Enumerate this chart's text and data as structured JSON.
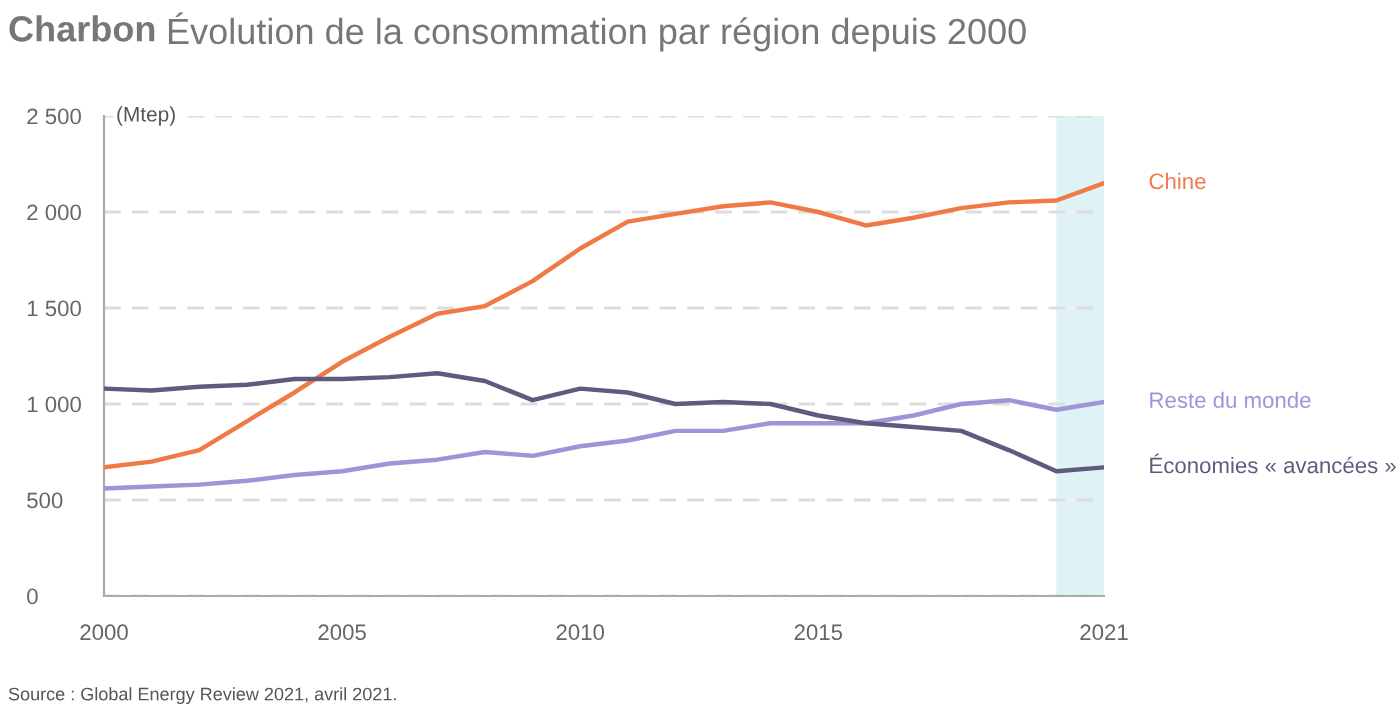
{
  "chart_data": {
    "type": "line",
    "title": "Charbon",
    "subtitle": "Évolution de la consommation par région depuis 2000",
    "ylabel": "(Mtep)",
    "x": [
      2000,
      2001,
      2002,
      2003,
      2004,
      2005,
      2006,
      2007,
      2008,
      2009,
      2010,
      2011,
      2012,
      2013,
      2014,
      2015,
      2016,
      2017,
      2018,
      2019,
      2020,
      2021
    ],
    "series": [
      {
        "name": "Chine",
        "color": "#f07a45",
        "values": [
          670,
          700,
          760,
          910,
          1060,
          1220,
          1350,
          1470,
          1510,
          1640,
          1810,
          1950,
          1990,
          2030,
          2050,
          2000,
          1930,
          1970,
          2020,
          2050,
          2060,
          2150
        ]
      },
      {
        "name": "Reste du monde",
        "color": "#9d95d6",
        "values": [
          560,
          570,
          580,
          600,
          630,
          650,
          690,
          710,
          750,
          730,
          780,
          810,
          860,
          860,
          900,
          900,
          900,
          940,
          1000,
          1020,
          970,
          1010
        ]
      },
      {
        "name": "Économies « avancées »",
        "color": "#5f5a7e",
        "values": [
          1080,
          1070,
          1090,
          1100,
          1130,
          1130,
          1140,
          1160,
          1120,
          1020,
          1080,
          1060,
          1000,
          1010,
          1000,
          940,
          900,
          880,
          860,
          760,
          650,
          670
        ]
      }
    ],
    "xlim": [
      2000,
      2021
    ],
    "xticks": [
      2000,
      2005,
      2010,
      2015,
      2021
    ],
    "ylim": [
      0,
      2500
    ],
    "yticks": [
      0,
      500,
      {
        "value": 1000,
        "label": "1 000"
      },
      {
        "value": 1500,
        "label": "1 500"
      },
      {
        "value": 2000,
        "label": "2 000"
      },
      {
        "value": 2500,
        "label": "2 500"
      }
    ],
    "bands": [
      {
        "axis": "x",
        "from": 2020,
        "to": 2021,
        "color": "#dff3f7"
      }
    ],
    "grid": "y",
    "legend": false,
    "marker": "none",
    "line_style": "solid",
    "annotations": [
      "Source : Global Energy Review 2021, avril 2021."
    ]
  }
}
